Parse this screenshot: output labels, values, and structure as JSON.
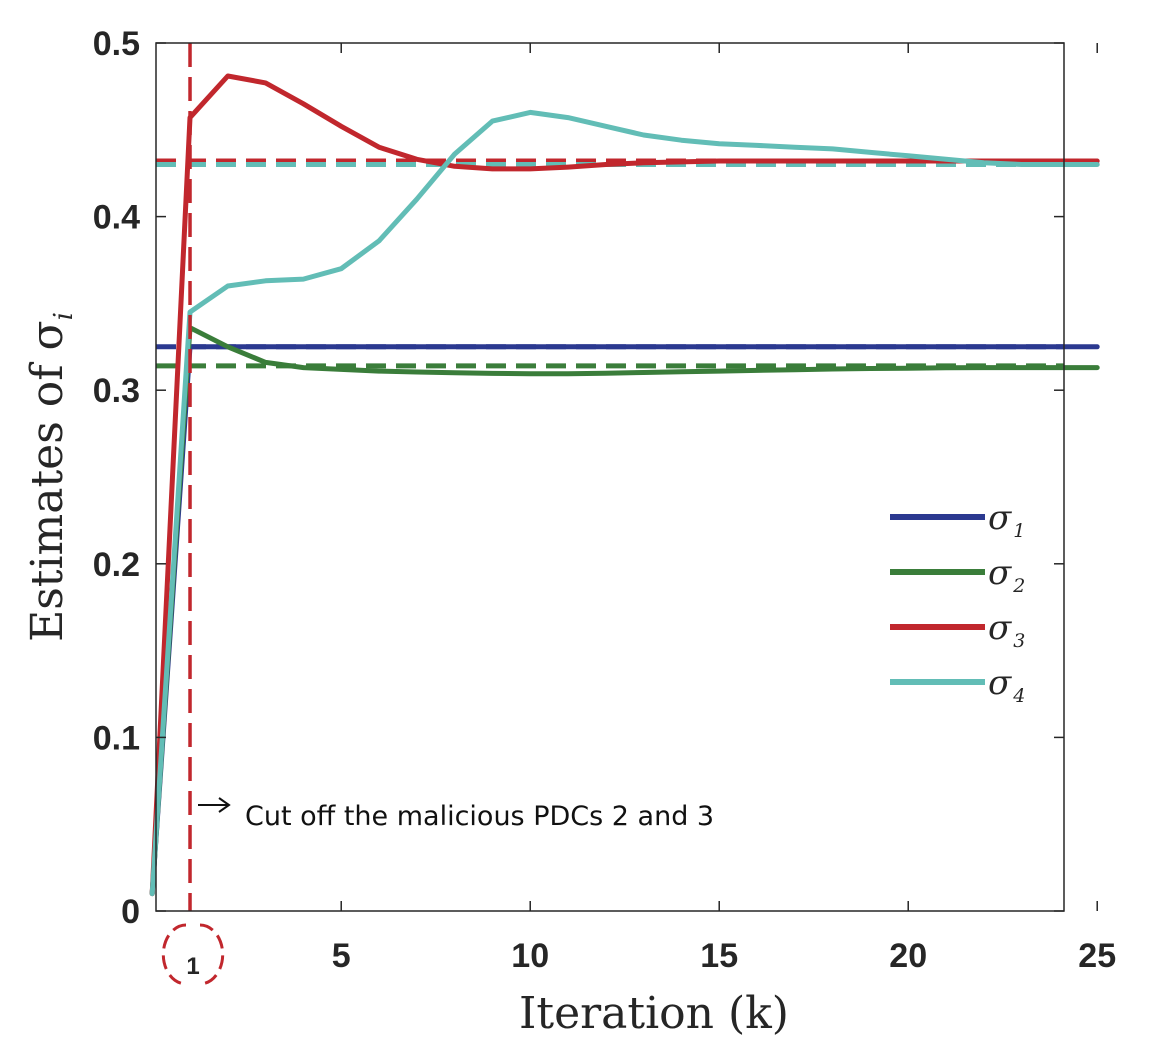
{
  "chart_data": {
    "type": "line",
    "xlabel": "Iteration (k)",
    "ylabel": "Estimates of σ",
    "ylabel_subscript": "i",
    "xlim": [
      0,
      25
    ],
    "ylim": [
      0,
      0.5
    ],
    "xticks": [
      5,
      10,
      15,
      20,
      25
    ],
    "xtick_labels": [
      "5",
      "10",
      "15",
      "20",
      "25"
    ],
    "yticks": [
      0,
      0.1,
      0.2,
      0.3,
      0.4,
      0.5
    ],
    "ytick_labels": [
      "0",
      "0.1",
      "0.2",
      "0.3",
      "0.4",
      "0.5"
    ],
    "grid": false,
    "legend_position": "center-right",
    "series": [
      {
        "name": "σ1",
        "legend_symbol": "σ",
        "legend_subscript": "1",
        "color": "#2B3990",
        "x": [
          0,
          1,
          2,
          3,
          4,
          5,
          6,
          7,
          8,
          9,
          10,
          11,
          12,
          13,
          14,
          15,
          16,
          17,
          18,
          19,
          20,
          21,
          22,
          23,
          24,
          25
        ],
        "values": [
          0.01,
          0.325,
          0.325,
          0.325,
          0.325,
          0.325,
          0.325,
          0.325,
          0.325,
          0.325,
          0.325,
          0.325,
          0.325,
          0.325,
          0.325,
          0.325,
          0.325,
          0.325,
          0.325,
          0.325,
          0.325,
          0.325,
          0.325,
          0.325,
          0.325,
          0.325
        ],
        "reference": 0.325
      },
      {
        "name": "σ2",
        "legend_symbol": "σ",
        "legend_subscript": "2",
        "color": "#3A7D3A",
        "x": [
          0,
          1,
          2,
          3,
          4,
          5,
          6,
          7,
          8,
          9,
          10,
          11,
          12,
          13,
          14,
          15,
          16,
          17,
          18,
          19,
          20,
          21,
          22,
          23,
          24,
          25
        ],
        "values": [
          0.01,
          0.336,
          0.325,
          0.316,
          0.313,
          0.312,
          0.311,
          0.3105,
          0.31,
          0.3097,
          0.3095,
          0.3095,
          0.3098,
          0.3102,
          0.3106,
          0.311,
          0.3114,
          0.3118,
          0.3122,
          0.3125,
          0.3127,
          0.3129,
          0.313,
          0.313,
          0.313,
          0.313
        ],
        "reference": 0.314
      },
      {
        "name": "σ3",
        "legend_symbol": "σ",
        "legend_subscript": "3",
        "color": "#C1272D",
        "x": [
          0,
          1,
          2,
          3,
          4,
          5,
          6,
          7,
          8,
          9,
          10,
          11,
          12,
          13,
          14,
          15,
          16,
          17,
          18,
          19,
          20,
          21,
          22,
          23,
          24,
          25
        ],
        "values": [
          0.01,
          0.457,
          0.481,
          0.477,
          0.465,
          0.452,
          0.44,
          0.433,
          0.429,
          0.4275,
          0.4275,
          0.4285,
          0.43,
          0.431,
          0.4315,
          0.432,
          0.432,
          0.432,
          0.432,
          0.432,
          0.432,
          0.432,
          0.432,
          0.432,
          0.432,
          0.432
        ],
        "reference": 0.432
      },
      {
        "name": "σ4",
        "legend_symbol": "σ",
        "legend_subscript": "4",
        "color": "#62BDB6",
        "x": [
          0,
          1,
          2,
          3,
          4,
          5,
          6,
          7,
          8,
          9,
          10,
          11,
          12,
          13,
          14,
          15,
          16,
          17,
          18,
          19,
          20,
          21,
          22,
          23,
          24,
          25
        ],
        "values": [
          0.01,
          0.345,
          0.36,
          0.363,
          0.364,
          0.37,
          0.386,
          0.41,
          0.436,
          0.455,
          0.46,
          0.457,
          0.452,
          0.447,
          0.444,
          0.442,
          0.441,
          0.44,
          0.439,
          0.437,
          0.435,
          0.433,
          0.431,
          0.43,
          0.43,
          0.43
        ],
        "reference": 0.43
      }
    ],
    "vertical_line": {
      "x": 1,
      "color": "#C1272D",
      "style": "dashed"
    },
    "marker_label": "1",
    "annotation": "Cut off the malicious PDCs 2 and 3"
  }
}
